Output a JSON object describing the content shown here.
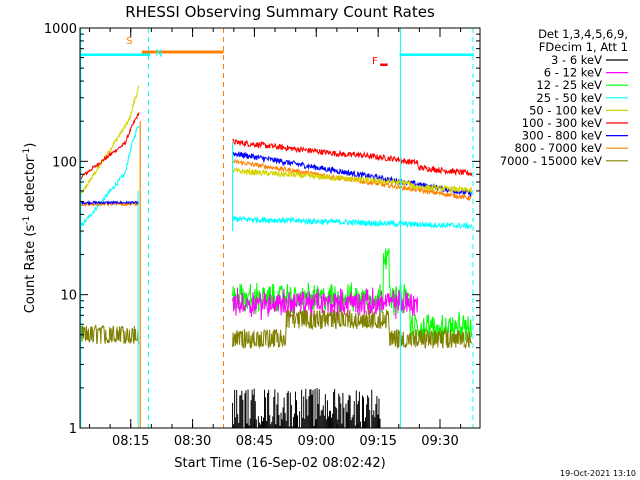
{
  "chart_data": {
    "type": "line",
    "title": "RHESSI Observing Summary Count Rates",
    "xlabel": "Start Time (16-Sep-02 08:02:42)",
    "ylabel_main": "Count Rate (s",
    "ylabel_exp1": "-1",
    "ylabel_mid": " detector",
    "ylabel_exp2": "-1",
    "ylabel_end": ")",
    "yscale": "log",
    "ylim": [
      1,
      1000
    ],
    "xlim_minutes": [
      0,
      97
    ],
    "y_ticks": [
      {
        "value": 1,
        "label": "1"
      },
      {
        "value": 10,
        "label": "10"
      },
      {
        "value": 100,
        "label": "100"
      },
      {
        "value": 1000,
        "label": "1000"
      }
    ],
    "x_ticks": [
      {
        "minute": 12.3,
        "label": "08:15"
      },
      {
        "minute": 27.3,
        "label": "08:30"
      },
      {
        "minute": 42.3,
        "label": "08:45"
      },
      {
        "minute": 57.3,
        "label": "09:00"
      },
      {
        "minute": 72.3,
        "label": "09:15"
      },
      {
        "minute": 87.3,
        "label": "09:30"
      }
    ],
    "legend_header": [
      "Det 1,3,4,5,6,9,",
      "FDecim 1, Att 1"
    ],
    "series": [
      {
        "name": "3 - 6 keV",
        "color": "#000000"
      },
      {
        "name": "6 - 12 keV",
        "color": "#ff00ff"
      },
      {
        "name": "12 - 25 keV",
        "color": "#00ff00"
      },
      {
        "name": "25 - 50 keV",
        "color": "#00ffff"
      },
      {
        "name": "50 - 100 keV",
        "color": "#d4d400"
      },
      {
        "name": "100 - 300 keV",
        "color": "#ff0000"
      },
      {
        "name": "300 - 800 keV",
        "color": "#0000ff"
      },
      {
        "name": "800 - 7000 keV",
        "color": "#ff8000"
      },
      {
        "name": "7000 - 15000 keV",
        "color": "#808000"
      }
    ],
    "annotations": [
      {
        "label": "S",
        "color": "#ff8000",
        "minute": 15.0
      },
      {
        "label": "N",
        "color": "#00ffff",
        "minute": 19.5
      },
      {
        "label": "F",
        "color": "#ff0000",
        "minute": 71.5
      }
    ],
    "footer_date": "19-Oct-2021 13:10"
  }
}
